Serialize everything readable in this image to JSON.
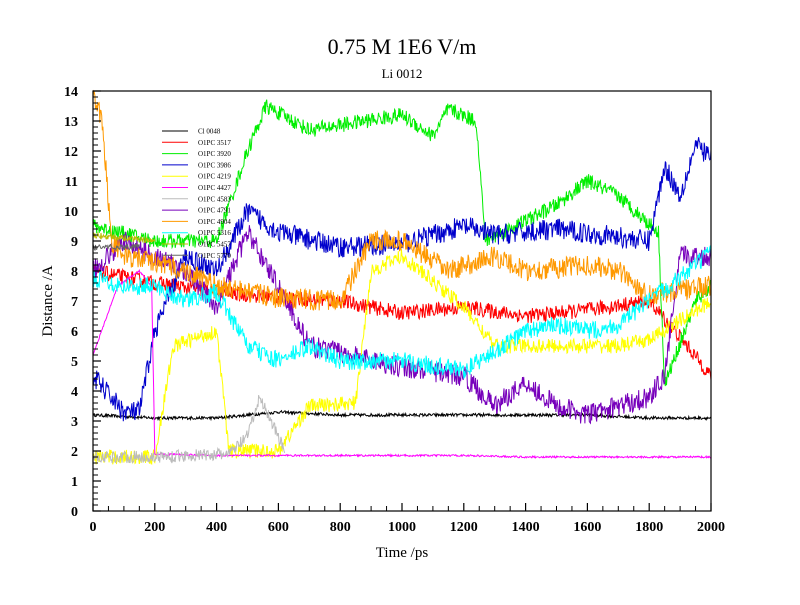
{
  "chart_data": {
    "type": "line",
    "title": "0.75 M 1E6 V/m",
    "subtitle": "Li 0012",
    "xlabel": "Time /ps",
    "ylabel": "Distance /A",
    "xlim": [
      0,
      2000
    ],
    "ylim": [
      0,
      14
    ],
    "x_ticks": [
      0,
      200,
      400,
      600,
      800,
      1000,
      1200,
      1400,
      1600,
      1800,
      2000
    ],
    "y_ticks": [
      0,
      1,
      2,
      3,
      4,
      5,
      6,
      7,
      8,
      9,
      10,
      11,
      12,
      13,
      14
    ],
    "grid": false,
    "legend_position": "top-left",
    "series": [
      {
        "name": "Cl 0048",
        "color": "#000000",
        "noise": 0.05,
        "points": [
          [
            0,
            3.2
          ],
          [
            200,
            3.1
          ],
          [
            400,
            3.1
          ],
          [
            600,
            3.3
          ],
          [
            800,
            3.2
          ],
          [
            1000,
            3.2
          ],
          [
            1200,
            3.2
          ],
          [
            1400,
            3.2
          ],
          [
            1600,
            3.2
          ],
          [
            1800,
            3.1
          ],
          [
            2000,
            3.1
          ]
        ]
      },
      {
        "name": "O1PC 3517",
        "color": "#ff0000",
        "noise": 0.25,
        "points": [
          [
            0,
            8.0
          ],
          [
            200,
            7.6
          ],
          [
            400,
            7.3
          ],
          [
            600,
            7.1
          ],
          [
            800,
            7.0
          ],
          [
            1000,
            6.6
          ],
          [
            1200,
            6.8
          ],
          [
            1400,
            6.5
          ],
          [
            1600,
            6.7
          ],
          [
            1800,
            7.0
          ],
          [
            1900,
            5.8
          ],
          [
            2000,
            4.5
          ]
        ]
      },
      {
        "name": "O1PC 3920",
        "color": "#00ee00",
        "noise": 0.25,
        "points": [
          [
            0,
            9.5
          ],
          [
            200,
            9.0
          ],
          [
            400,
            9.0
          ],
          [
            500,
            12.0
          ],
          [
            560,
            13.5
          ],
          [
            700,
            12.7
          ],
          [
            1000,
            13.2
          ],
          [
            1100,
            12.5
          ],
          [
            1150,
            13.4
          ],
          [
            1240,
            13.0
          ],
          [
            1270,
            9.0
          ],
          [
            1500,
            10.2
          ],
          [
            1600,
            11.0
          ],
          [
            1700,
            10.5
          ],
          [
            1830,
            9.3
          ],
          [
            1850,
            4.2
          ],
          [
            1950,
            7.0
          ],
          [
            2000,
            7.5
          ]
        ]
      },
      {
        "name": "O1PC 3986",
        "color": "#0000cc",
        "noise": 0.35,
        "points": [
          [
            0,
            4.5
          ],
          [
            100,
            3.3
          ],
          [
            150,
            3.3
          ],
          [
            200,
            6.0
          ],
          [
            300,
            8.5
          ],
          [
            400,
            8.0
          ],
          [
            500,
            10.0
          ],
          [
            600,
            9.3
          ],
          [
            800,
            8.8
          ],
          [
            1000,
            8.9
          ],
          [
            1200,
            9.5
          ],
          [
            1300,
            9.2
          ],
          [
            1500,
            9.4
          ],
          [
            1800,
            9.0
          ],
          [
            1850,
            11.5
          ],
          [
            1900,
            10.5
          ],
          [
            1950,
            12.2
          ],
          [
            2000,
            11.8
          ]
        ]
      },
      {
        "name": "O1PC 4219",
        "color": "#ffff00",
        "noise": 0.25,
        "points": [
          [
            0,
            1.8
          ],
          [
            200,
            1.8
          ],
          [
            260,
            5.5
          ],
          [
            400,
            6.0
          ],
          [
            440,
            2.0
          ],
          [
            600,
            2.0
          ],
          [
            700,
            3.5
          ],
          [
            850,
            3.6
          ],
          [
            900,
            8.0
          ],
          [
            1000,
            8.5
          ],
          [
            1200,
            6.8
          ],
          [
            1300,
            5.5
          ],
          [
            1500,
            5.5
          ],
          [
            1700,
            5.5
          ],
          [
            1800,
            5.7
          ],
          [
            2000,
            7.0
          ]
        ]
      },
      {
        "name": "O1PC 4427",
        "color": "#ff00ff",
        "noise": 0.03,
        "points": [
          [
            0,
            5.2
          ],
          [
            80,
            7.5
          ],
          [
            150,
            8.0
          ],
          [
            190,
            7.5
          ],
          [
            200,
            1.9
          ],
          [
            400,
            1.85
          ],
          [
            600,
            1.85
          ],
          [
            800,
            1.85
          ],
          [
            1000,
            1.85
          ],
          [
            1200,
            1.85
          ],
          [
            1400,
            1.8
          ],
          [
            1600,
            1.8
          ],
          [
            1800,
            1.8
          ],
          [
            2000,
            1.8
          ]
        ]
      },
      {
        "name": "O1PC 4583",
        "color": "#bbbbbb",
        "noise": 0.2,
        "points": [
          [
            0,
            1.8
          ],
          [
            200,
            1.8
          ],
          [
            440,
            1.9
          ],
          [
            500,
            2.5
          ],
          [
            540,
            3.8
          ],
          [
            600,
            2.5
          ],
          [
            620,
            2.0
          ]
        ]
      },
      {
        "name": "O1PC 4791",
        "color": "#7700bb",
        "noise": 0.35,
        "points": [
          [
            0,
            8.0
          ],
          [
            100,
            9.0
          ],
          [
            200,
            8.5
          ],
          [
            300,
            8.0
          ],
          [
            400,
            6.8
          ],
          [
            500,
            9.3
          ],
          [
            600,
            7.5
          ],
          [
            700,
            5.5
          ],
          [
            800,
            5.3
          ],
          [
            1000,
            4.8
          ],
          [
            1200,
            4.5
          ],
          [
            1300,
            3.5
          ],
          [
            1400,
            4.3
          ],
          [
            1500,
            3.5
          ],
          [
            1600,
            3.2
          ],
          [
            1700,
            3.5
          ],
          [
            1800,
            3.8
          ],
          [
            1850,
            4.5
          ],
          [
            1900,
            8.5
          ],
          [
            2000,
            8.5
          ]
        ]
      },
      {
        "name": "O1PC 4904",
        "color": "#ff9900",
        "noise": 0.35,
        "points": [
          [
            0,
            14.0
          ],
          [
            30,
            13.0
          ],
          [
            60,
            9.0
          ],
          [
            100,
            8.5
          ],
          [
            200,
            8.3
          ],
          [
            300,
            8.0
          ],
          [
            400,
            7.5
          ],
          [
            500,
            7.3
          ],
          [
            600,
            7.1
          ],
          [
            800,
            7.0
          ],
          [
            900,
            9.0
          ],
          [
            1000,
            9.0
          ],
          [
            1150,
            8.0
          ],
          [
            1300,
            8.5
          ],
          [
            1400,
            8.0
          ],
          [
            1600,
            8.2
          ],
          [
            1700,
            8.0
          ],
          [
            1800,
            7.2
          ],
          [
            2000,
            7.5
          ]
        ]
      },
      {
        "name": "O1PC 5316",
        "color": "#00ffff",
        "noise": 0.3,
        "points": [
          [
            0,
            7.8
          ],
          [
            100,
            7.5
          ],
          [
            200,
            7.5
          ],
          [
            300,
            7.0
          ],
          [
            400,
            7.3
          ],
          [
            500,
            5.5
          ],
          [
            600,
            5.0
          ],
          [
            700,
            5.5
          ],
          [
            800,
            5.0
          ],
          [
            1000,
            5.0
          ],
          [
            1200,
            4.7
          ],
          [
            1300,
            5.3
          ],
          [
            1400,
            6.0
          ],
          [
            1500,
            6.2
          ],
          [
            1600,
            6.0
          ],
          [
            1700,
            6.2
          ],
          [
            1800,
            7.0
          ],
          [
            2000,
            8.6
          ]
        ]
      },
      {
        "name": "O1PC 5457",
        "color": "#bbbb00",
        "noise": 0.1,
        "points": [
          [
            0,
            9.2
          ],
          [
            200,
            9.0
          ]
        ]
      },
      {
        "name": "O1PC 5770",
        "color": "#666666",
        "noise": 0.1,
        "points": [
          [
            0,
            8.8
          ],
          [
            150,
            8.8
          ]
        ]
      }
    ]
  }
}
